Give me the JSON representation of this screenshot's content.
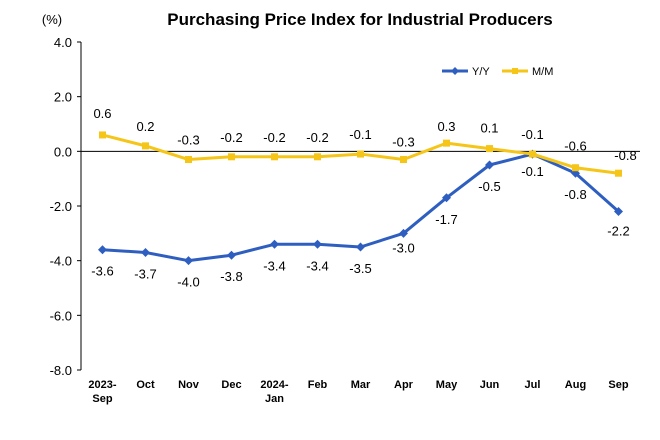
{
  "chart_data": {
    "type": "line",
    "title": "Purchasing Price Index for Industrial Producers",
    "unit_label": "(%)",
    "categories": [
      [
        "2023-",
        "Sep"
      ],
      [
        "Oct"
      ],
      [
        "Nov"
      ],
      [
        "Dec"
      ],
      [
        "2024-",
        "Jan"
      ],
      [
        "Feb"
      ],
      [
        "Mar"
      ],
      [
        "Apr"
      ],
      [
        "May"
      ],
      [
        "Jun"
      ],
      [
        "Jul"
      ],
      [
        "Aug"
      ],
      [
        "Sep"
      ]
    ],
    "ylim": [
      -8.0,
      4.0
    ],
    "yticks": [
      "4.0",
      "2.0",
      "0.0",
      "-2.0",
      "-4.0",
      "-6.0",
      "-8.0"
    ],
    "ytick_values": [
      4,
      2,
      0,
      -2,
      -4,
      -6,
      -8
    ],
    "grid": false,
    "legend_position": "top-right",
    "series": [
      {
        "name": "Y/Y",
        "color": "#2E5FC0",
        "marker": "diamond",
        "values": [
          -3.6,
          -3.7,
          -4.0,
          -3.8,
          -3.4,
          -3.4,
          -3.5,
          -3.0,
          -1.7,
          -0.5,
          -0.1,
          -0.8,
          -2.2
        ],
        "labels": [
          "-3.6",
          "-3.7",
          "-4.0",
          "-3.8",
          "-3.4",
          "-3.4",
          "-3.5",
          "-3.0",
          "-1.7",
          "-0.5",
          "-0.1",
          "-0.8",
          "-2.2"
        ]
      },
      {
        "name": "M/M",
        "color": "#F5C518",
        "marker": "square",
        "values": [
          0.6,
          0.2,
          -0.3,
          -0.2,
          -0.2,
          -0.2,
          -0.1,
          -0.3,
          0.3,
          0.1,
          -0.1,
          -0.6,
          -0.8
        ],
        "labels": [
          "0.6",
          "0.2",
          "-0.3",
          "-0.2",
          "-0.2",
          "-0.2",
          "-0.1",
          "-0.3",
          "0.3",
          "0.1",
          "-0.1",
          "-0.6",
          "-0.8"
        ]
      }
    ]
  }
}
